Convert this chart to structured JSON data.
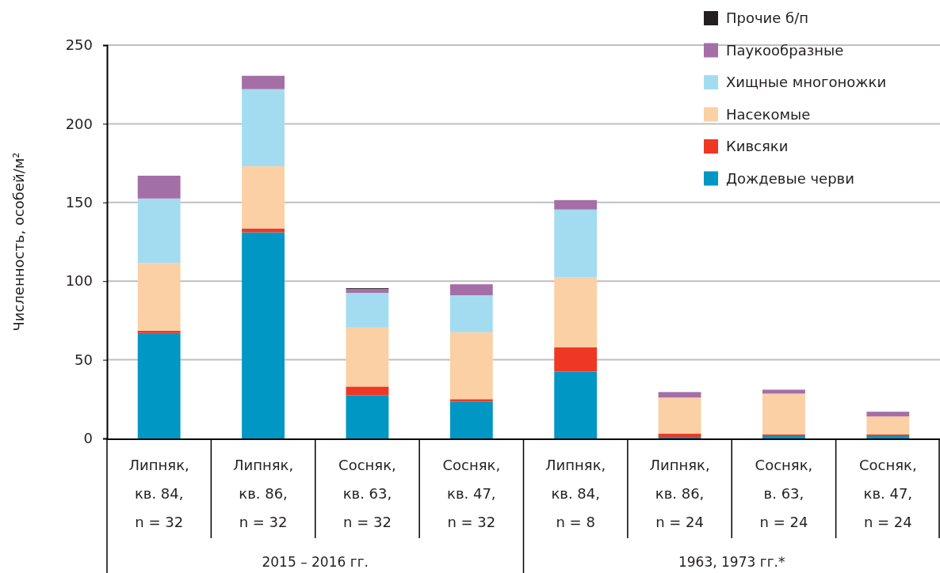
{
  "chart_data": {
    "type": "bar",
    "stacked": true,
    "ylabel": "Численность, особей/м²",
    "categories": [
      "Липняк, кв. 84, n = 32",
      "Липняк, кв. 86, n = 32",
      "Сосняк, кв. 63, n = 32",
      "Сосняк, кв. 47, n = 32",
      "Липняк, кв. 84, n = 8",
      "Липняк, кв. 86, n = 24",
      "Сосняк, в. 63, n = 24",
      "Сосняк, кв. 47, n = 24"
    ],
    "series": [
      {
        "name": "Дождевые черви",
        "color": "#0097c4",
        "values": [
          67,
          131,
          27.5,
          23.5,
          42.5,
          1,
          1.5,
          1.5
        ]
      },
      {
        "name": "Кивсяки",
        "color": "#ee3823",
        "values": [
          1.5,
          2.5,
          5.5,
          1.5,
          15.5,
          2,
          1,
          1
        ]
      },
      {
        "name": "Насекомые",
        "color": "#fbd0a5",
        "values": [
          43,
          39.5,
          37.5,
          42.5,
          44.5,
          23,
          26,
          11.5
        ]
      },
      {
        "name": "Хищные многоножки",
        "color": "#a3dcf1",
        "values": [
          41,
          49,
          22,
          23.5,
          43,
          0,
          0,
          0
        ]
      },
      {
        "name": "Паукообразные",
        "color": "#a46fa6",
        "values": [
          14.5,
          8.5,
          2.5,
          7,
          6,
          3.5,
          2.5,
          3
        ]
      },
      {
        "name": "Прочие б/п",
        "color": "#231f20",
        "values": [
          0,
          0,
          0.5,
          0,
          0,
          0,
          0,
          0
        ]
      }
    ],
    "ylim": [
      0,
      250
    ],
    "yticks": [
      0,
      50,
      100,
      150,
      200,
      250
    ],
    "grid": "y",
    "legend": "top right",
    "annotations": [
      "2015 – 2016 гг.",
      "1963, 1973 гг.*"
    ]
  }
}
